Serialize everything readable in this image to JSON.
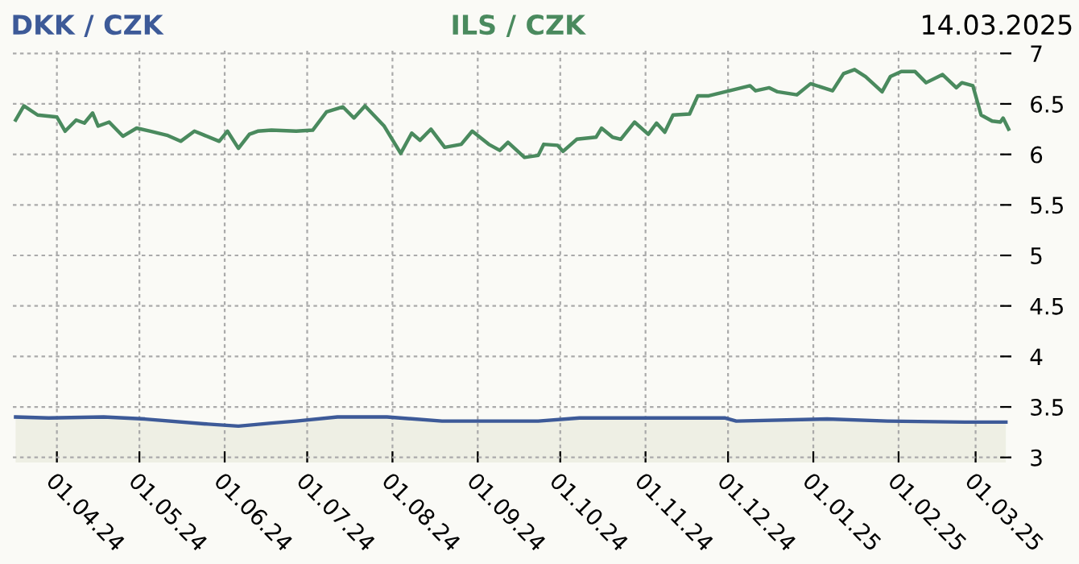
{
  "chart_data": {
    "type": "line",
    "title": "14.03.2025",
    "xlim": [
      "2024-03-16",
      "2025-03-14"
    ],
    "xticks": [
      {
        "value": "2024-04-01",
        "label": "01.04.24"
      },
      {
        "value": "2024-05-01",
        "label": "01.05.24"
      },
      {
        "value": "2024-06-01",
        "label": "01.06.24"
      },
      {
        "value": "2024-07-01",
        "label": "01.07.24"
      },
      {
        "value": "2024-08-01",
        "label": "01.08.24"
      },
      {
        "value": "2024-09-01",
        "label": "01.09.24"
      },
      {
        "value": "2024-10-01",
        "label": "01.10.24"
      },
      {
        "value": "2024-11-01",
        "label": "01.11.24"
      },
      {
        "value": "2024-12-01",
        "label": "01.12.24"
      },
      {
        "value": "2025-01-01",
        "label": "01.01.25"
      },
      {
        "value": "2025-02-01",
        "label": "01.02.25"
      },
      {
        "value": "2025-03-01",
        "label": "01.03.25"
      }
    ],
    "ylim": [
      2.95,
      7.05
    ],
    "yticks": [
      3,
      3.5,
      4,
      4.5,
      5,
      5.5,
      6,
      6.5,
      7
    ],
    "grid": true,
    "legend": "top",
    "line_style": "solid",
    "marker": "none",
    "series": [
      {
        "name": "DKK / CZK",
        "type": "area",
        "color": "#3d5a98",
        "x": [
          "2024-03-17",
          "2024-03-29",
          "2024-04-18",
          "2024-05-03",
          "2024-05-26",
          "2024-06-06",
          "2024-06-18",
          "2024-06-27",
          "2024-07-12",
          "2024-07-30",
          "2024-08-19",
          "2024-09-23",
          "2024-10-08",
          "2024-11-30",
          "2024-12-04",
          "2025-01-06",
          "2025-01-28",
          "2025-02-25",
          "2025-03-12"
        ],
        "values": [
          3.4,
          3.39,
          3.4,
          3.38,
          3.33,
          3.31,
          3.34,
          3.36,
          3.4,
          3.4,
          3.36,
          3.36,
          3.39,
          3.39,
          3.36,
          3.38,
          3.36,
          3.35,
          3.35
        ]
      },
      {
        "name": "ILS / CZK",
        "color": "#4a8a5e",
        "x": [
          "2024-03-17",
          "2024-03-20",
          "2024-03-25",
          "2024-04-01",
          "2024-04-04",
          "2024-04-08",
          "2024-04-11",
          "2024-04-14",
          "2024-04-16",
          "2024-04-20",
          "2024-04-25",
          "2024-04-30",
          "2024-05-05",
          "2024-05-11",
          "2024-05-16",
          "2024-05-21",
          "2024-05-30",
          "2024-06-02",
          "2024-06-06",
          "2024-06-10",
          "2024-06-13",
          "2024-06-18",
          "2024-06-27",
          "2024-07-03",
          "2024-07-08",
          "2024-07-14",
          "2024-07-18",
          "2024-07-22",
          "2024-07-29",
          "2024-08-04",
          "2024-08-08",
          "2024-08-11",
          "2024-08-15",
          "2024-08-20",
          "2024-08-26",
          "2024-08-30",
          "2024-09-05",
          "2024-09-09",
          "2024-09-12",
          "2024-09-18",
          "2024-09-23",
          "2024-09-25",
          "2024-09-30",
          "2024-10-02",
          "2024-10-07",
          "2024-10-14",
          "2024-10-16",
          "2024-10-20",
          "2024-10-23",
          "2024-10-28",
          "2024-11-02",
          "2024-11-05",
          "2024-11-08",
          "2024-11-11",
          "2024-11-17",
          "2024-11-20",
          "2024-11-24",
          "2024-12-03",
          "2024-12-09",
          "2024-12-11",
          "2024-12-16",
          "2024-12-19",
          "2024-12-26",
          "2024-12-31",
          "2025-01-08",
          "2025-01-12",
          "2025-01-16",
          "2025-01-20",
          "2025-01-26",
          "2025-01-29",
          "2025-02-02",
          "2025-02-07",
          "2025-02-11",
          "2025-02-17",
          "2025-02-22",
          "2025-02-24",
          "2025-02-28",
          "2025-03-03",
          "2025-03-07",
          "2025-03-10",
          "2025-03-11",
          "2025-03-13"
        ],
        "values": [
          6.34,
          6.48,
          6.39,
          6.37,
          6.23,
          6.34,
          6.31,
          6.41,
          6.28,
          6.32,
          6.18,
          6.26,
          6.23,
          6.19,
          6.13,
          6.23,
          6.13,
          6.23,
          6.06,
          6.2,
          6.23,
          6.24,
          6.23,
          6.24,
          6.42,
          6.47,
          6.36,
          6.48,
          6.28,
          6.01,
          6.21,
          6.14,
          6.25,
          6.07,
          6.1,
          6.23,
          6.1,
          6.04,
          6.12,
          5.97,
          5.99,
          6.1,
          6.09,
          6.03,
          6.15,
          6.17,
          6.26,
          6.17,
          6.15,
          6.32,
          6.2,
          6.31,
          6.22,
          6.39,
          6.4,
          6.58,
          6.58,
          6.64,
          6.68,
          6.63,
          6.66,
          6.62,
          6.59,
          6.7,
          6.63,
          6.8,
          6.84,
          6.77,
          6.62,
          6.77,
          6.82,
          6.82,
          6.71,
          6.79,
          6.66,
          6.71,
          6.68,
          6.39,
          6.33,
          6.32,
          6.36,
          6.25
        ]
      }
    ]
  }
}
